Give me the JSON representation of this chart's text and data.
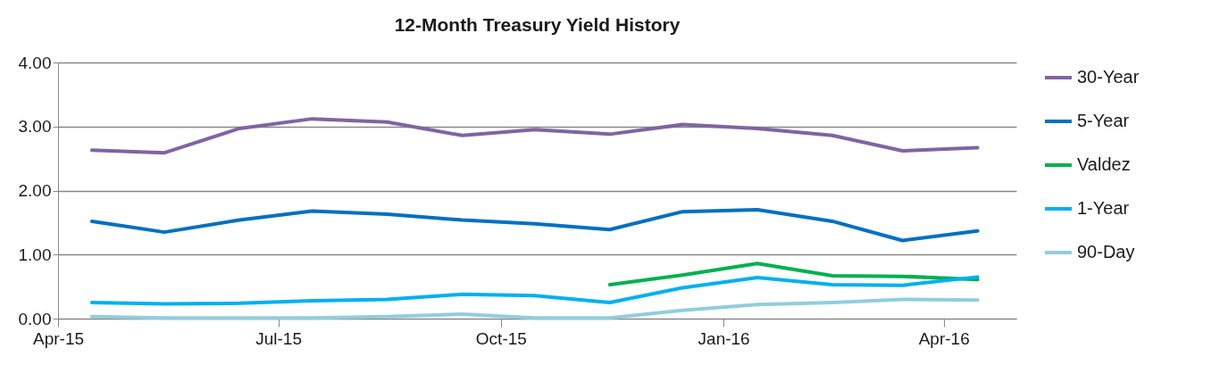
{
  "chart_data": {
    "type": "line",
    "title": "12-Month Treasury Yield History",
    "x": [
      "2015-04-15",
      "2015-05-15",
      "2015-06-15",
      "2015-07-15",
      "2015-08-15",
      "2015-09-15",
      "2015-10-15",
      "2015-11-15",
      "2015-12-15",
      "2016-01-15",
      "2016-02-15",
      "2016-03-15",
      "2016-04-15"
    ],
    "series": [
      {
        "name": "30-Year",
        "color": "#8064a2",
        "values": [
          2.63,
          2.59,
          2.97,
          3.12,
          3.07,
          2.86,
          2.95,
          2.88,
          3.03,
          2.97,
          2.86,
          2.62,
          2.67
        ]
      },
      {
        "name": "5-Year",
        "color": "#0070c0",
        "values": [
          1.52,
          1.35,
          1.54,
          1.68,
          1.63,
          1.54,
          1.48,
          1.39,
          1.67,
          1.7,
          1.52,
          1.22,
          1.37
        ]
      },
      {
        "name": "Valdez",
        "color": "#00b050",
        "values": [
          null,
          null,
          null,
          null,
          null,
          null,
          null,
          0.53,
          0.68,
          0.86,
          0.67,
          0.66,
          0.61
        ]
      },
      {
        "name": "1-Year",
        "color": "#00b0f0",
        "values": [
          0.25,
          0.23,
          0.24,
          0.28,
          0.3,
          0.38,
          0.36,
          0.25,
          0.48,
          0.64,
          0.53,
          0.52,
          0.65
        ]
      },
      {
        "name": "90-Day",
        "color": "#92cddc",
        "values": [
          0.03,
          0.01,
          0.01,
          0.01,
          0.03,
          0.07,
          0.01,
          0.01,
          0.13,
          0.22,
          0.25,
          0.3,
          0.29
        ]
      }
    ],
    "xlim": [
      "2015-04-01",
      "2016-05-01"
    ],
    "xticks": [
      {
        "value": "2015-04-01",
        "label": "Apr-15"
      },
      {
        "value": "2015-07-01",
        "label": "Jul-15"
      },
      {
        "value": "2015-10-01",
        "label": "Oct-15"
      },
      {
        "value": "2016-01-01",
        "label": "Jan-16"
      },
      {
        "value": "2016-04-01",
        "label": "Apr-16"
      }
    ],
    "ylim": [
      0,
      4
    ],
    "yticks": [
      {
        "value": 0,
        "label": "0.00"
      },
      {
        "value": 1,
        "label": "1.00"
      },
      {
        "value": 2,
        "label": "2.00"
      },
      {
        "value": 3,
        "label": "3.00"
      },
      {
        "value": 4,
        "label": "4.00"
      }
    ],
    "grid": "y",
    "legend": "right",
    "marker": "none",
    "line_style": "solid"
  }
}
